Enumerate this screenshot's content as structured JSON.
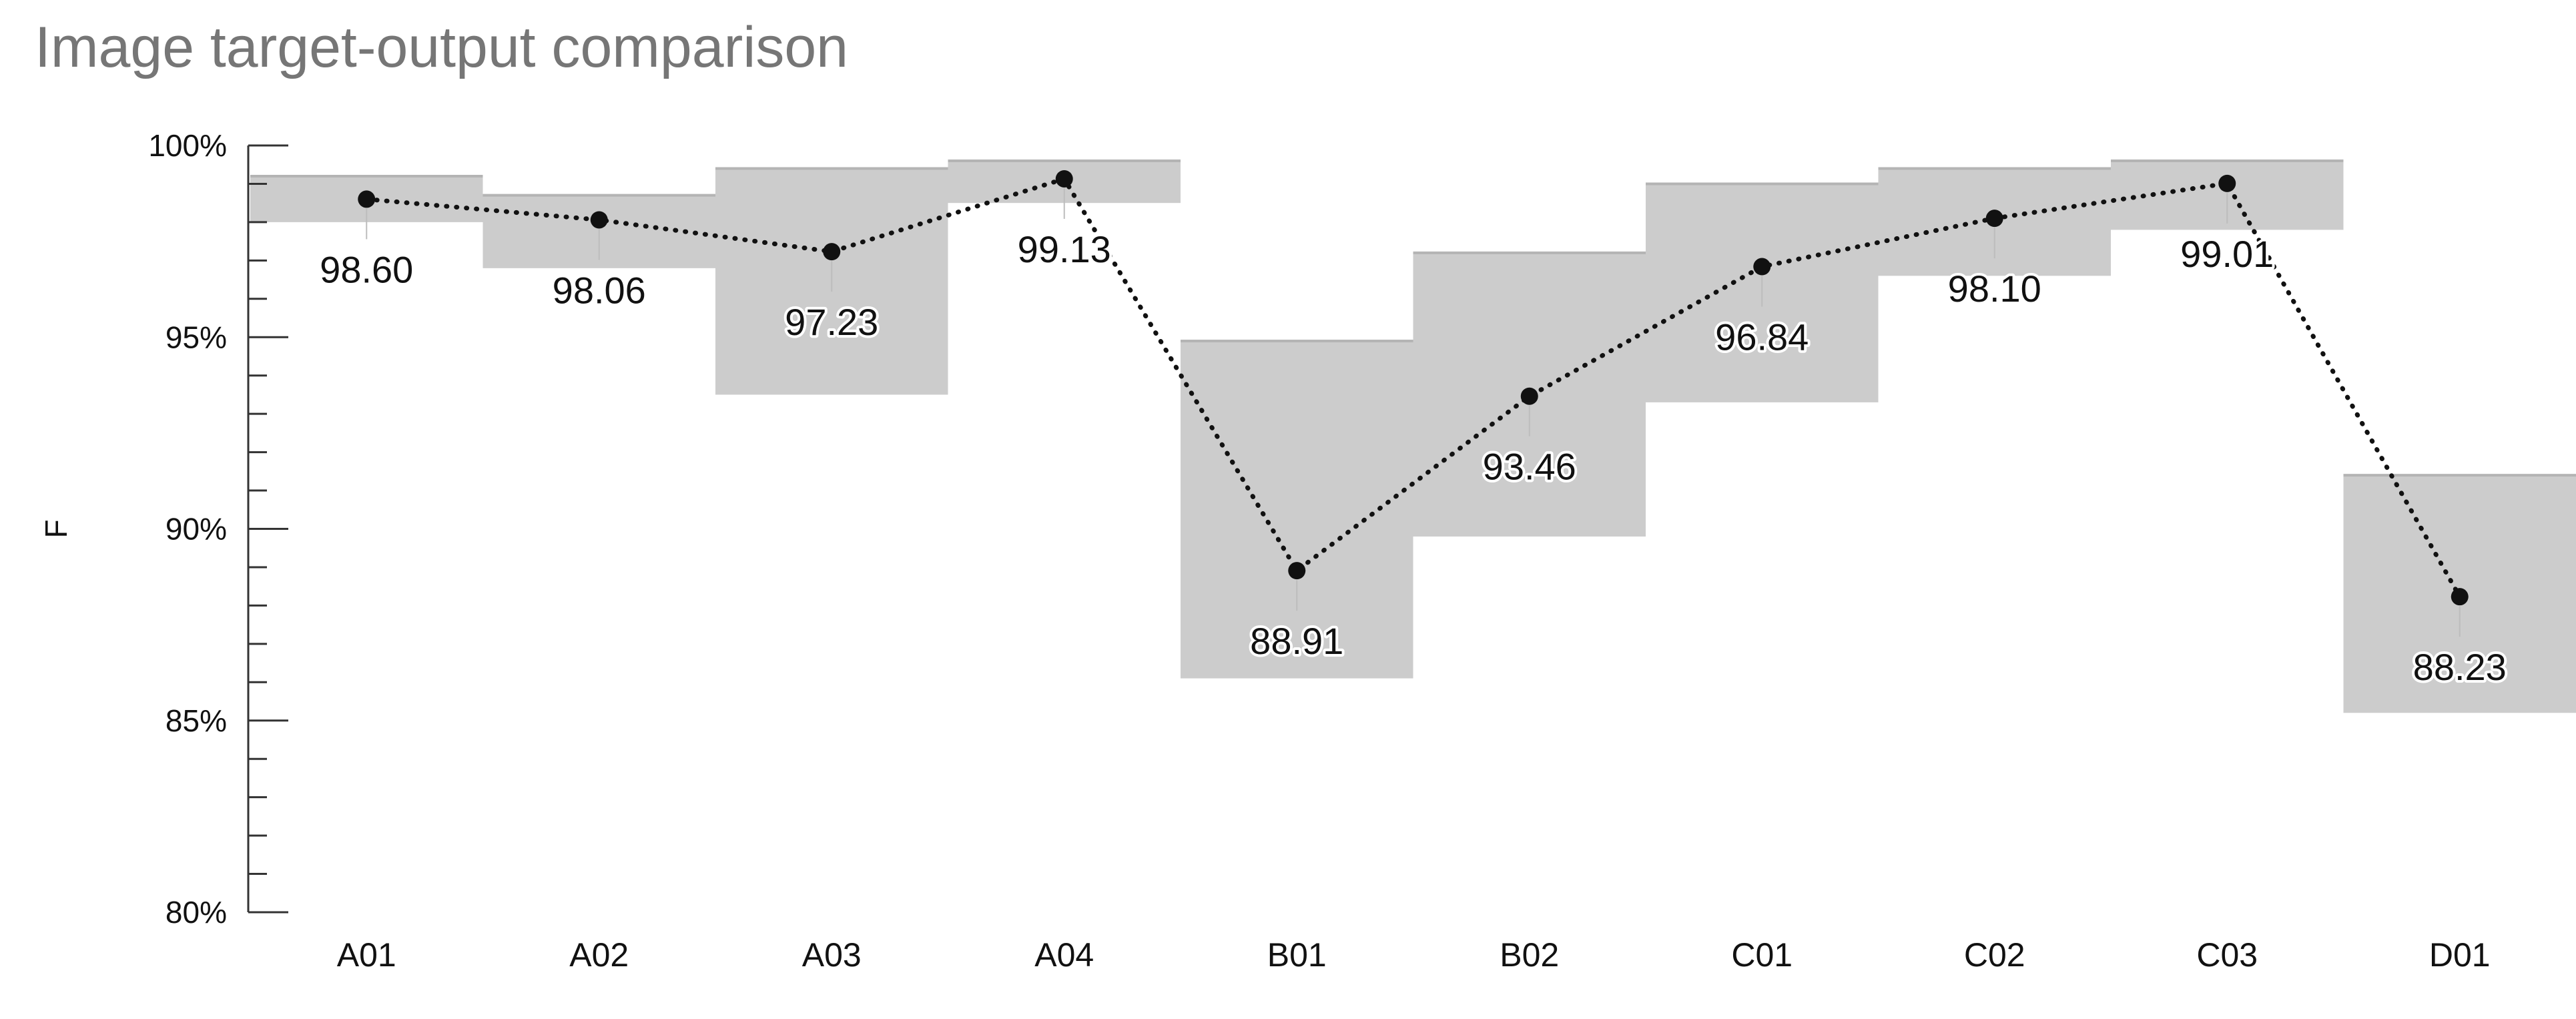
{
  "chart_data": {
    "type": "line",
    "title": "Image target-output comparison",
    "xlabel": "",
    "ylabel": "F",
    "ylim": [
      80,
      100
    ],
    "yticks": [
      "80%",
      "85%",
      "90%",
      "95%",
      "100%"
    ],
    "categories": [
      "A01",
      "A02",
      "A03",
      "A04",
      "B01",
      "B02",
      "C01",
      "C02",
      "C03",
      "D01"
    ],
    "series": [
      {
        "values": [
          98.6,
          98.06,
          97.23,
          99.13,
          88.91,
          93.46,
          96.84,
          98.1,
          99.01,
          88.23
        ],
        "labels": [
          "98.60",
          "98.06",
          "97.23",
          "99.13",
          "88.91",
          "93.46",
          "96.84",
          "98.10",
          "99.01",
          "88.23"
        ],
        "line_style": "dotted",
        "color": "#111111"
      }
    ],
    "range_bands": [
      {
        "low": 98.0,
        "high": 99.2
      },
      {
        "low": 96.8,
        "high": 98.7
      },
      {
        "low": 93.5,
        "high": 99.4
      },
      {
        "low": 98.5,
        "high": 99.6
      },
      {
        "low": 86.1,
        "high": 94.9
      },
      {
        "low": 89.8,
        "high": 97.2
      },
      {
        "low": 93.3,
        "high": 99.0
      },
      {
        "low": 96.6,
        "high": 99.4
      },
      {
        "low": 97.8,
        "high": 99.6
      },
      {
        "low": 85.2,
        "high": 91.4
      }
    ],
    "band_color": "#cccccc",
    "grid": false
  }
}
